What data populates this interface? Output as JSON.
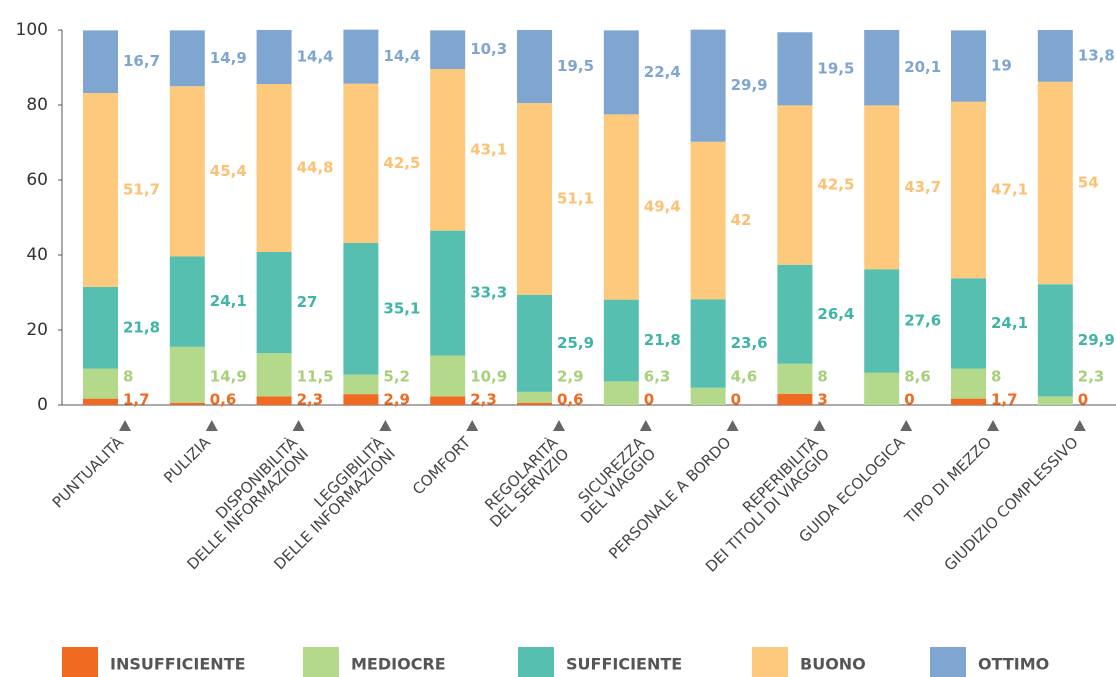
{
  "chart_data": {
    "type": "stacked-bar",
    "categories": [
      "PUNTUALITÀ",
      "PULIZIA",
      "DISPONIBILITÀ\nDELLE INFORMAZIONI",
      "LEGGIBILITÀ\nDELLE INFORMAZIONI",
      "COMFORT",
      "REGOLARITÀ\nDEL SERVIZIO",
      "SICUREZZA\nDEL VIAGGIO",
      "PERSONALE A BORDO",
      "REPERIBILITÀ\nDEI TITOLI DI VIAGGIO",
      "GUIDA ECOLOGICA",
      "TIPO DI MEZZO",
      "GIUDIZIO COMPLESSIVO"
    ],
    "series": [
      {
        "name": "INSUFFICIENTE",
        "color": "#f06a22",
        "values": [
          1.7,
          0.6,
          2.3,
          2.9,
          2.3,
          0.6,
          0,
          0,
          3,
          0,
          1.7,
          0
        ],
        "value_labels": [
          "1,7",
          "0,6",
          "2,3",
          "2,9",
          "2,3",
          "0,6",
          "0",
          "0",
          "3",
          "0",
          "1,7",
          "0"
        ]
      },
      {
        "name": "MEDIOCRE",
        "color": "#b5d98a",
        "values": [
          8,
          14.9,
          11.5,
          5.2,
          10.9,
          2.9,
          6.3,
          4.6,
          8,
          8.6,
          8,
          2.3
        ],
        "value_labels": [
          "8",
          "14,9",
          "11,5",
          "5,2",
          "10,9",
          "2,9",
          "6,3",
          "4,6",
          "8",
          "8,6",
          "8",
          "2,3"
        ]
      },
      {
        "name": "SUFFICIENTE",
        "color": "#57bfb0",
        "values": [
          21.8,
          24.1,
          27,
          35.1,
          33.3,
          25.9,
          21.8,
          23.6,
          26.4,
          27.6,
          24.1,
          29.9
        ],
        "value_labels": [
          "21,8",
          "24,1",
          "27",
          "35,1",
          "33,3",
          "25,9",
          "21,8",
          "23,6",
          "26,4",
          "27,6",
          "24,1",
          "29,9"
        ]
      },
      {
        "name": "BUONO",
        "color": "#fdc97c",
        "values": [
          51.7,
          45.4,
          44.8,
          42.5,
          43.1,
          51.1,
          49.4,
          42,
          42.5,
          43.7,
          47.1,
          54
        ],
        "value_labels": [
          "51,7",
          "45,4",
          "44,8",
          "42,5",
          "43,1",
          "51,1",
          "49,4",
          "42",
          "42,5",
          "43,7",
          "47,1",
          "54"
        ]
      },
      {
        "name": "OTTIMO",
        "color": "#7fa6d0",
        "values": [
          16.7,
          14.9,
          14.4,
          14.4,
          10.3,
          19.5,
          22.4,
          29.9,
          19.5,
          20.1,
          19,
          13.8
        ],
        "value_labels": [
          "16,7",
          "14,9",
          "14,4",
          "14,4",
          "10,3",
          "19,5",
          "22,4",
          "29,9",
          "19,5",
          "20,1",
          "19",
          "13,8"
        ]
      }
    ],
    "ylim": [
      0,
      100
    ],
    "yticks": [
      0,
      20,
      40,
      60,
      80,
      100
    ],
    "grid": false,
    "legend": "bottom"
  }
}
